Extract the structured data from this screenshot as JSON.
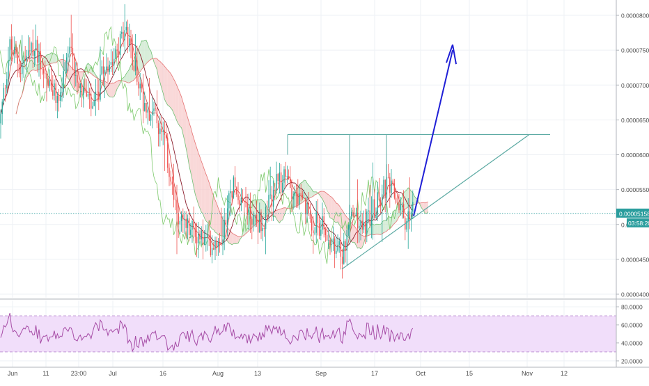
{
  "colors": {
    "background": "#ffffff",
    "grid": "#eef1f5",
    "axis_text": "#4a4a4a",
    "candle_up": "#26a69a",
    "candle_down": "#ef5350",
    "cloud_green": "#c8e6c9",
    "cloud_red": "#f6c7c7",
    "tenkan": "#d9534f",
    "kijun": "#8a1c2b",
    "chikou": "#7cc96b",
    "trend_lines": "#5aa9a2",
    "arrow": "#1f1fd6",
    "price_line": "#2a9d9d",
    "rsi_line": "#a64ca6",
    "rsi_band": "#f1defa",
    "rsi_band_border": "#b98ad0"
  },
  "chart_data": [
    {
      "type": "candlestick",
      "indicators": [
        "ichimoku cloud"
      ],
      "x_ticks": [
        "Jun",
        "11",
        "23:00",
        "Jul",
        "16",
        "Aug",
        "13",
        "Sep",
        "17",
        "Oct",
        "15",
        "Nov",
        "12"
      ],
      "y_ticks": [
        "0.00008000",
        "0.00007500",
        "0.00007000",
        "0.00006500",
        "0.00006000",
        "0.00005500",
        "0.00005000",
        "0.00004500",
        "0.00004000"
      ],
      "ylim": [
        3.95e-05,
        8.22e-05
      ],
      "last_price": "0.00005158",
      "countdown": "03:58:20",
      "support_line_start": [
        4.36e-05,
        4.36e-05
      ],
      "support_line_end": [
        6.29e-05
      ],
      "resistance_level": 6.29e-05,
      "grid": true
    },
    {
      "type": "line",
      "indicator": "RSI",
      "y_ticks": [
        "80.0000",
        "60.0000",
        "40.0000",
        "20.0000"
      ],
      "ylim": [
        13,
        87
      ],
      "band": [
        30,
        70
      ],
      "grid": true
    }
  ]
}
